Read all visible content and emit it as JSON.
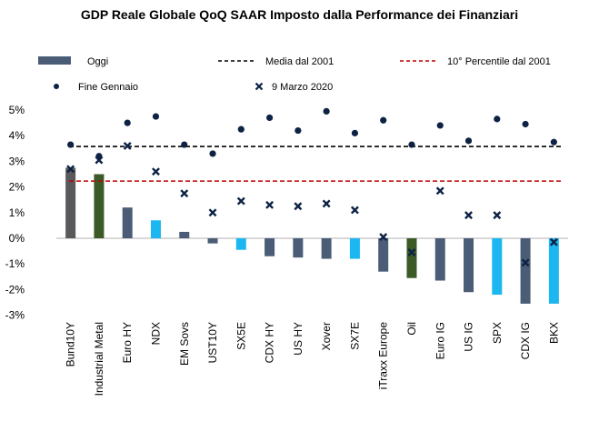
{
  "chart_data": {
    "type": "bar",
    "title": "GDP Reale Globale QoQ SAAR Imposto dalla Performance dei Finanziari",
    "xlabel": "",
    "ylabel": "",
    "ylim": [
      -3,
      5
    ],
    "y_ticks": [
      "5%",
      "4%",
      "3%",
      "2%",
      "1%",
      "0%",
      "-1%",
      "-2%",
      "-3%"
    ],
    "y_tick_values": [
      5,
      4,
      3,
      2,
      1,
      0,
      -1,
      -2,
      -3
    ],
    "grid": false,
    "legend_position": "top",
    "categories": [
      "Bund10Y",
      "Industrial Metal",
      "Euro HY",
      "NDX",
      "EM Sovs",
      "UST10Y",
      "SX5E",
      "CDX HY",
      "US HY",
      "Xover",
      "SX7E",
      "iTraxx Europe",
      "Oil",
      "Euro IG",
      "US IG",
      "SPX",
      "CDX IG",
      "BKX"
    ],
    "series": [
      {
        "name": "Oggi",
        "kind": "bar",
        "values": [
          2.75,
          2.5,
          1.2,
          0.7,
          0.25,
          -0.2,
          -0.45,
          -0.7,
          -0.75,
          -0.8,
          -0.8,
          -1.3,
          -1.55,
          -1.65,
          -2.1,
          -2.2,
          -2.55,
          -2.55
        ],
        "colors": [
          "#59595b",
          "#3b5a27",
          "#4b5d76",
          "#1cb7f0",
          "#4b5d76",
          "#4b5d76",
          "#1cb7f0",
          "#4b5d76",
          "#4b5d76",
          "#4b5d76",
          "#1cb7f0",
          "#4b5d76",
          "#3b5a27",
          "#4b5d76",
          "#4b5d76",
          "#1cb7f0",
          "#4b5d76",
          "#1cb7f0"
        ]
      },
      {
        "name": "Fine Gennaio",
        "kind": "dot",
        "values": [
          3.65,
          3.2,
          4.5,
          4.75,
          3.65,
          3.3,
          4.25,
          4.7,
          4.2,
          4.95,
          4.1,
          4.6,
          3.65,
          4.4,
          3.8,
          4.65,
          4.45,
          3.75
        ]
      },
      {
        "name": "9 Marzo 2020",
        "kind": "x-marker",
        "values": [
          2.7,
          3.05,
          3.6,
          2.6,
          1.75,
          1.0,
          1.45,
          1.3,
          1.25,
          1.35,
          1.1,
          0.05,
          -0.55,
          1.85,
          0.9,
          0.9,
          -0.95,
          -0.15
        ]
      },
      {
        "name": "Media dal 2001",
        "kind": "hline",
        "value": 3.58
      },
      {
        "name": "10° Percentile dal 2001",
        "kind": "hline",
        "value": 2.23
      }
    ],
    "colors": {
      "bar_default": "#4b5d76",
      "dot": "#0d2244",
      "x_marker": "#0d2244",
      "media_line": "#000000",
      "percentile_line": "#c00000"
    }
  }
}
